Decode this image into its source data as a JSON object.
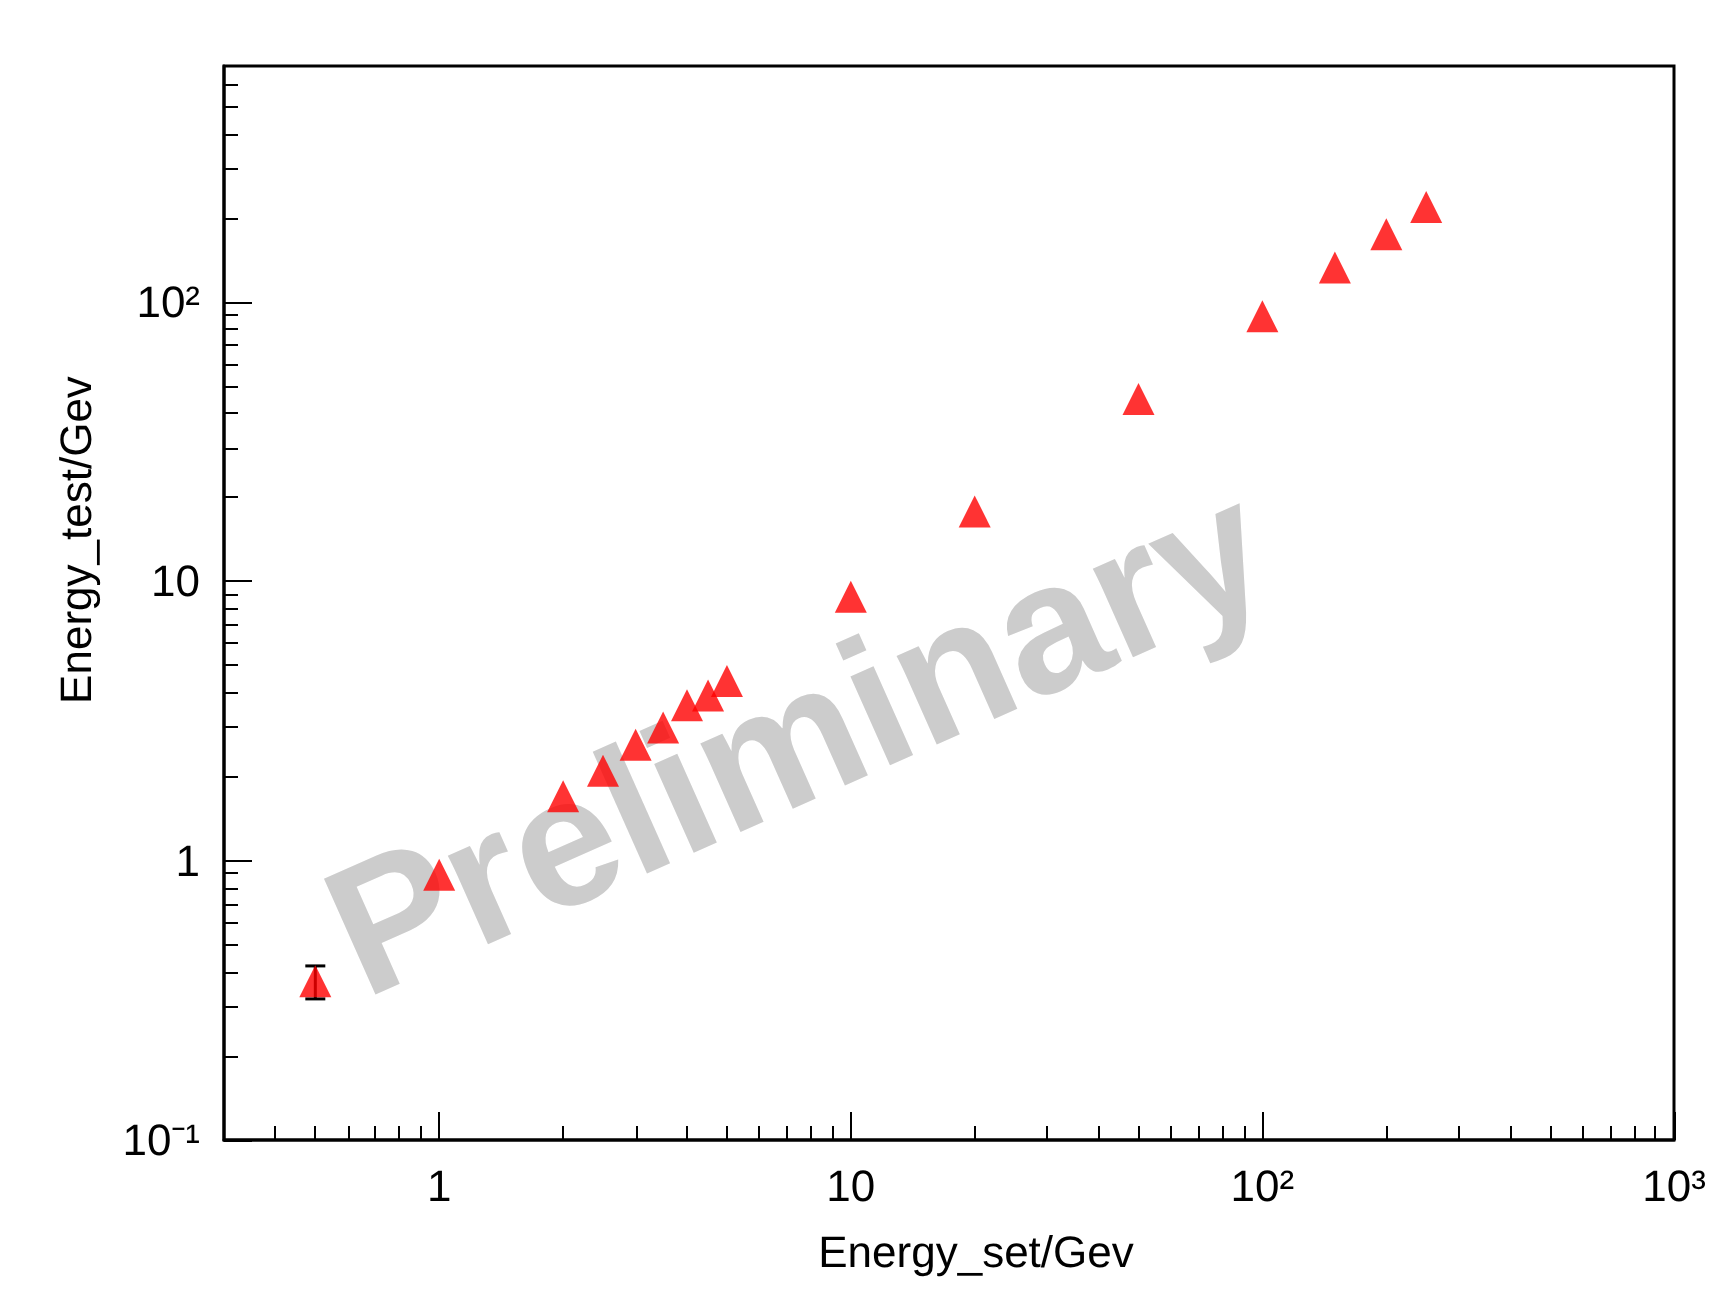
{
  "chart_data": {
    "type": "scatter",
    "xlabel": "Energy_set/Gev",
    "ylabel": "Energy_test/Gev",
    "annotations": [
      "Preliminary"
    ],
    "x": [
      0.5,
      1,
      2,
      2.5,
      3,
      3.5,
      4,
      4.5,
      5,
      10,
      20,
      50,
      100,
      150,
      200,
      250
    ],
    "series": [
      {
        "color": "#ff0000",
        "values": [
          0.37,
          0.89,
          1.7,
          2.1,
          2.6,
          3.0,
          3.6,
          3.9,
          4.4,
          8.8,
          17.8,
          45,
          89,
          133,
          175,
          219
        ],
        "errors": [
          [
            0.32,
            0.42
          ],
          null,
          null,
          null,
          null,
          null,
          null,
          null,
          null,
          null,
          null,
          null,
          null,
          null,
          null,
          null
        ]
      }
    ],
    "marker": "triangle",
    "log": "xy",
    "xlim": [
      0.3,
      1000
    ],
    "ylim": [
      0.1,
      700
    ],
    "xticks": [
      1,
      10,
      {
        "value": 100,
        "label": "10²"
      },
      {
        "value": 1000,
        "label": "10³"
      }
    ],
    "yticks": [
      {
        "value": 0.1,
        "label": "10⁻¹"
      },
      1,
      10,
      {
        "value": 100,
        "label": "10²"
      }
    ],
    "tick_labels": "xy"
  }
}
